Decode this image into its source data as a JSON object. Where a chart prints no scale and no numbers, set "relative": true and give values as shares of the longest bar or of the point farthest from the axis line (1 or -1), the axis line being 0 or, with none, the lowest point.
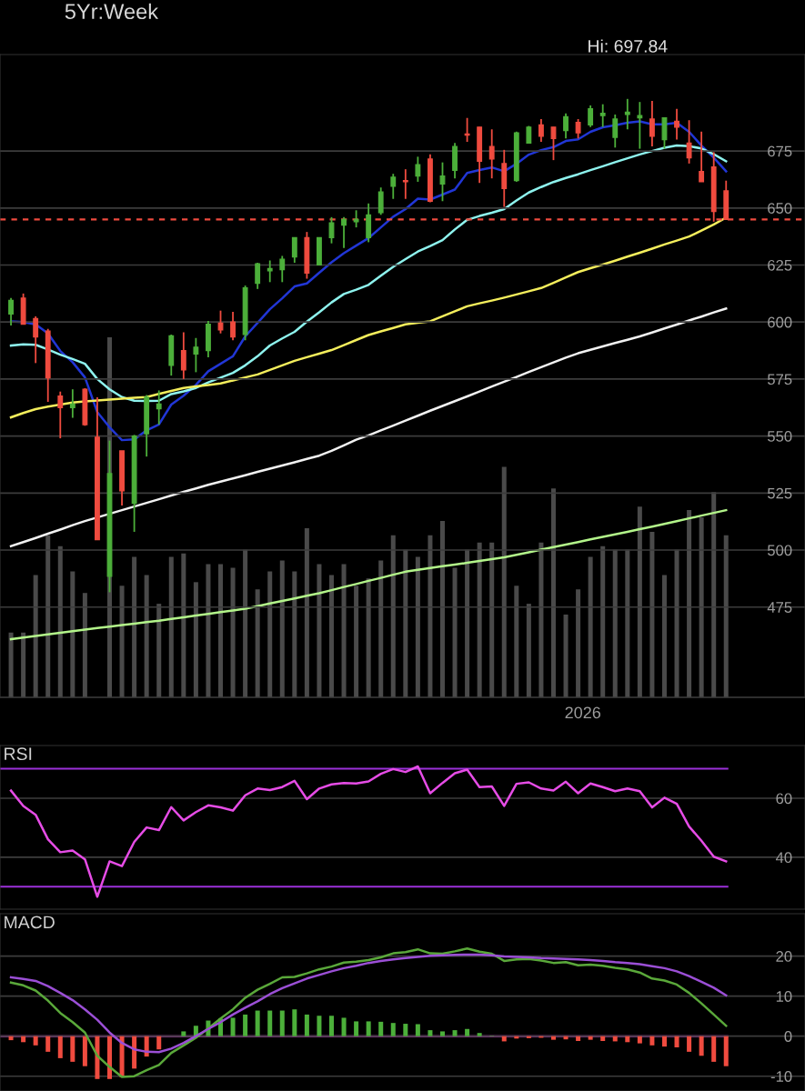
{
  "chart_data": [
    {
      "type": "candlestick",
      "title": "5Yr:Week",
      "categories": [
        null,
        null,
        null,
        null,
        null,
        null,
        null,
        null,
        null,
        null,
        null,
        null,
        null,
        null,
        null,
        null,
        null,
        null,
        null,
        null,
        null,
        null,
        null,
        null,
        null,
        null,
        null,
        null,
        null,
        null,
        null,
        null,
        null,
        null,
        null,
        null,
        null,
        null,
        null,
        null,
        null,
        null,
        null,
        null,
        null,
        null,
        null,
        null,
        null,
        null,
        null,
        null,
        null,
        null,
        null,
        null,
        null,
        null,
        null
      ],
      "ohlc": [
        [
          603.5,
          610.5,
          598.5,
          609.5
        ],
        [
          610.5,
          612.5,
          599,
          599
        ],
        [
          601.5,
          602.5,
          582,
          593.5
        ],
        [
          596,
          597,
          565,
          575.5
        ],
        [
          567.5,
          569.5,
          549,
          562.5
        ],
        [
          562.5,
          570.5,
          558,
          564
        ],
        [
          570.5,
          571,
          554.5,
          555
        ],
        [
          549.5,
          567,
          504.5,
          504.5
        ],
        [
          488.5,
          548,
          481.5,
          533.5
        ],
        [
          543.5,
          543.5,
          519.5,
          526
        ],
        [
          520.5,
          550.5,
          508,
          550
        ],
        [
          551,
          568,
          541,
          567
        ],
        [
          562,
          570,
          555,
          564
        ],
        [
          581,
          594.5,
          576.5,
          594
        ],
        [
          587.5,
          595.5,
          575,
          579
        ],
        [
          586,
          593,
          578,
          589
        ],
        [
          587.5,
          600.5,
          584.5,
          599
        ],
        [
          599.5,
          605,
          595,
          596.5
        ],
        [
          600,
          604.5,
          592,
          593.5
        ],
        [
          594.5,
          616,
          592,
          615
        ],
        [
          617,
          626,
          614.5,
          625.5
        ],
        [
          622.5,
          627,
          617.5,
          623.5
        ],
        [
          623,
          629,
          617.5,
          627.5
        ],
        [
          628.5,
          637,
          626,
          637
        ],
        [
          637,
          639.5,
          619,
          621.5
        ],
        [
          625,
          637,
          625,
          637
        ],
        [
          637,
          646,
          634.5,
          643.5
        ],
        [
          642.5,
          646,
          632.5,
          645
        ],
        [
          644,
          649,
          641.5,
          645
        ],
        [
          637,
          652,
          635,
          647
        ],
        [
          648,
          659,
          647,
          657
        ],
        [
          659.5,
          665,
          654,
          663.5
        ],
        [
          662,
          667,
          654,
          661.5
        ],
        [
          664,
          672.5,
          661.5,
          669
        ],
        [
          671.5,
          673.5,
          652.5,
          653
        ],
        [
          660.5,
          670,
          653,
          664
        ],
        [
          666.5,
          678.5,
          663,
          677
        ],
        [
          682.5,
          689.5,
          679,
          682
        ],
        [
          685.5,
          685.5,
          661,
          670.5
        ],
        [
          677,
          684.5,
          663,
          671.5
        ],
        [
          669.5,
          675.5,
          650.5,
          658.5
        ],
        [
          662,
          683.5,
          661.5,
          683
        ],
        [
          678.5,
          686,
          678.5,
          685.5
        ],
        [
          686.5,
          689,
          679,
          681.5
        ],
        [
          685.5,
          685.5,
          671,
          680.5
        ],
        [
          684,
          691.5,
          680.5,
          690
        ],
        [
          687.5,
          689,
          680.5,
          683
        ],
        [
          686.5,
          695,
          685.5,
          693.5
        ],
        [
          690.5,
          695.5,
          685.5,
          691.5
        ],
        [
          681,
          691,
          676.5,
          689
        ],
        [
          691,
          697.84,
          684.5,
          692
        ],
        [
          689.5,
          696.5,
          676,
          690.5
        ],
        [
          689,
          697,
          677,
          681.5
        ],
        [
          680,
          689.5,
          676,
          689.5
        ],
        [
          688,
          693.5,
          680,
          685.5
        ],
        [
          678.5,
          688.5,
          669.5,
          672
        ],
        [
          666,
          683.5,
          661.5,
          661.5
        ],
        [
          668,
          674.5,
          644,
          648.5
        ],
        [
          657.5,
          662,
          645,
          645
        ]
      ],
      "colors": [
        "#4caf3a",
        "#ef4b3f",
        "#ef4b3f",
        "#ef4b3f",
        "#ef4b3f",
        "#4caf3a",
        "#ef4b3f",
        "#ef4b3f",
        "#4caf3a",
        "#ef4b3f",
        "#4caf3a",
        "#4caf3a",
        "#4caf3a",
        "#4caf3a",
        "#ef4b3f",
        "#4caf3a",
        "#4caf3a",
        "#ef4b3f",
        "#ef4b3f",
        "#4caf3a",
        "#4caf3a",
        "#4caf3a",
        "#4caf3a",
        "#4caf3a",
        "#ef4b3f",
        "#4caf3a",
        "#4caf3a",
        "#4caf3a",
        "#4caf3a",
        "#4caf3a",
        "#4caf3a",
        "#4caf3a",
        "#ef4b3f",
        "#4caf3a",
        "#ef4b3f",
        "#4caf3a",
        "#4caf3a",
        "#ef4b3f",
        "#ef4b3f",
        "#ef4b3f",
        "#ef4b3f",
        "#4caf3a",
        "#4caf3a",
        "#ef4b3f",
        "#ef4b3f",
        "#4caf3a",
        "#ef4b3f",
        "#4caf3a",
        "#4caf3a",
        "#4caf3a",
        "#4caf3a",
        "#4caf3a",
        "#ef4b3f",
        "#4caf3a",
        "#ef4b3f",
        "#ef4b3f",
        "#ef4b3f",
        "#ef4b3f",
        "#ef4b3f"
      ],
      "ylim": [
        435.4,
        717.3
      ],
      "yticks": [
        475,
        500,
        525,
        550,
        575,
        600,
        625,
        650,
        675
      ],
      "tick_labels": "y",
      "grid": "y",
      "ref_lines": [
        {
          "axis": "y",
          "value": 645,
          "color": "#ef4b3f",
          "line_style": "dashed"
        }
      ],
      "annotations": [
        {
          "text": "Hi: 697.84",
          "y": 697.84
        }
      ]
    },
    {
      "type": "line",
      "categories": [
        null,
        null,
        null,
        null,
        null,
        null,
        null,
        null,
        null,
        null,
        null,
        null,
        null,
        null,
        null,
        null,
        null,
        null,
        null,
        null,
        null,
        null,
        null,
        null,
        null,
        null,
        null,
        null,
        null,
        null,
        null,
        null,
        null,
        null,
        null,
        null,
        null,
        null,
        null,
        null,
        null,
        null,
        null,
        null,
        null,
        null,
        null,
        null,
        null,
        null,
        null,
        null,
        null,
        null,
        null,
        null,
        null,
        null,
        null
      ],
      "series": [
        {
          "type": "line",
          "color": "#2136d6",
          "values": [
            600.3,
            600.0,
            599.0,
            595.0,
            587.3,
            582.4,
            575.7,
            560.5,
            553.8,
            548.2,
            548.5,
            552.5,
            555.1,
            563.8,
            567.7,
            572.4,
            578.4,
            581.7,
            585.0,
            593.7,
            599.6,
            605.6,
            610.4,
            615.6,
            616.9,
            621.6,
            626.2,
            630.2,
            633.5,
            636.8,
            641.5,
            646.2,
            649.5,
            654.1,
            653.7,
            655.9,
            658.1,
            665.4,
            666.7,
            667.8,
            666.1,
            669.4,
            673.4,
            675.4,
            676.7,
            679.4,
            680.1,
            683.4,
            685.4,
            686.3,
            687.4,
            688.0,
            686.7,
            686.7,
            687.4,
            683.4,
            677.4,
            672.1,
            666.1
          ]
        },
        {
          "type": "line",
          "color": "#8ef3ee",
          "values": [
            589.7,
            590.2,
            590.0,
            588.0,
            585.7,
            583.8,
            581.7,
            575.0,
            570.5,
            567.1,
            565.5,
            565.4,
            565.5,
            568.4,
            569.6,
            571.1,
            573.5,
            575.6,
            577.7,
            581.0,
            585.0,
            589.7,
            592.8,
            595.7,
            600.2,
            604.3,
            608.6,
            612.3,
            614.2,
            616.3,
            620.3,
            624.2,
            627.6,
            630.9,
            633.3,
            635.9,
            640.6,
            644.8,
            646.5,
            647.9,
            649.5,
            653.3,
            656.8,
            659.2,
            661.4,
            663.2,
            664.8,
            666.6,
            668.3,
            670.1,
            671.8,
            673.5,
            675.0,
            676.4,
            677.4,
            677.1,
            676.1,
            673.6,
            670.5
          ]
        },
        {
          "type": "line",
          "color": "#f4ee5c",
          "values": [
            558.2,
            560.1,
            561.8,
            562.9,
            563.8,
            564.7,
            565.2,
            565.6,
            566.0,
            566.4,
            566.8,
            567.1,
            568.5,
            569.8,
            571.1,
            571.8,
            572.4,
            573.1,
            574.4,
            575.7,
            577.0,
            579.0,
            581.0,
            583.0,
            584.6,
            586.1,
            587.7,
            589.9,
            592.1,
            594.3,
            595.9,
            597.4,
            599.0,
            599.7,
            600.3,
            602.5,
            604.7,
            606.9,
            608.2,
            609.4,
            610.7,
            612.1,
            613.5,
            614.9,
            617.2,
            619.6,
            621.9,
            623.6,
            625.2,
            626.9,
            628.7,
            630.4,
            632.2,
            634.0,
            635.7,
            637.5,
            640.1,
            642.8,
            645.8
          ]
        },
        {
          "type": "line",
          "color": "#f2f2f2",
          "values": [
            501.7,
            503.5,
            505.3,
            507.2,
            509.0,
            510.9,
            512.7,
            514.3,
            515.9,
            517.5,
            519.1,
            520.7,
            522.3,
            523.9,
            525.5,
            527.0,
            528.6,
            530.0,
            531.4,
            532.8,
            534.3,
            535.7,
            537.1,
            538.5,
            540.0,
            541.4,
            543.5,
            545.9,
            548.4,
            550.3,
            552.5,
            554.6,
            556.8,
            558.9,
            561.1,
            563.2,
            565.3,
            567.4,
            569.5,
            571.7,
            573.8,
            575.9,
            578.1,
            580.2,
            582.3,
            584.4,
            586.3,
            587.8,
            589.3,
            590.8,
            592.2,
            593.7,
            595.4,
            597.2,
            598.9,
            600.7,
            602.4,
            604.2,
            605.9
          ]
        },
        {
          "type": "line",
          "color": "#b3f58a",
          "values": [
            460.9,
            461.6,
            462.3,
            463.0,
            463.7,
            464.4,
            465.1,
            465.8,
            466.4,
            467.1,
            467.7,
            468.4,
            469.0,
            469.8,
            470.5,
            471.3,
            472.0,
            472.8,
            473.5,
            474.3,
            475.4,
            476.6,
            477.7,
            478.8,
            480.0,
            481.1,
            482.4,
            483.8,
            485.1,
            486.5,
            487.8,
            489.2,
            490.5,
            491.3,
            492.1,
            492.9,
            493.6,
            494.4,
            495.2,
            496.0,
            496.8,
            497.9,
            499.0,
            500.2,
            501.3,
            502.4,
            503.5,
            504.7,
            505.8,
            506.9,
            508.0,
            509.2,
            510.3,
            511.5,
            512.7,
            513.9,
            515.1,
            516.3,
            517.5
          ]
        }
      ],
      "ylim": [
        435.4,
        717.3
      ],
      "yticks": [
        475,
        500,
        525,
        550,
        575,
        600,
        625,
        650,
        675
      ],
      "tick_labels": false
    },
    {
      "type": "bar",
      "relative": true,
      "color": "#4a4a4a",
      "categories": [
        null,
        null,
        null,
        null,
        null,
        null,
        null,
        null,
        null,
        null,
        null,
        null,
        null,
        null,
        null,
        null,
        null,
        null,
        null,
        null,
        null,
        null,
        null,
        null,
        null,
        null,
        null,
        null,
        null,
        null,
        null,
        null,
        null,
        null,
        null,
        null,
        null,
        null,
        null,
        null,
        null,
        null,
        null,
        null,
        null,
        null,
        null,
        null,
        null,
        null,
        null,
        null,
        null,
        null,
        null,
        null,
        null,
        null,
        null
      ],
      "annotations": [
        "2026"
      ],
      "values": [
        0.18,
        0.18,
        0.34,
        0.45,
        0.42,
        0.35,
        0.29,
        null,
        1,
        0.31,
        0.39,
        0.34,
        0.26,
        0.39,
        0.4,
        0.32,
        0.37,
        0.37,
        0.36,
        0.41,
        0.3,
        0.35,
        0.38,
        0.35,
        0.47,
        0.37,
        0.34,
        0.37,
        0.31,
        0.33,
        0.38,
        0.45,
        0.41,
        0.39,
        0.45,
        0.49,
        0.36,
        0.41,
        0.43,
        0.43,
        0.64,
        0.31,
        0.26,
        0.43,
        0.58,
        0.23,
        0.3,
        0.39,
        0.42,
        0.41,
        0.41,
        0.53,
        0.46,
        0.34,
        0.41,
        0.52,
        0.5,
        0.57,
        0.45
      ],
      "tick_labels": "x"
    },
    {
      "type": "line",
      "title": "RSI",
      "categories": [
        null,
        null,
        null,
        null,
        null,
        null,
        null,
        null,
        null,
        null,
        null,
        null,
        null,
        null,
        null,
        null,
        null,
        null,
        null,
        null,
        null,
        null,
        null,
        null,
        null,
        null,
        null,
        null,
        null,
        null,
        null,
        null,
        null,
        null,
        null,
        null,
        null,
        null,
        null,
        null,
        null,
        null,
        null,
        null,
        null,
        null,
        null,
        null,
        null,
        null,
        null,
        null,
        null,
        null,
        null,
        null,
        null,
        null,
        null
      ],
      "series": [
        {
          "type": "line",
          "color": "#e64ce6",
          "values": [
            62.6,
            57.4,
            54.4,
            46.1,
            41.7,
            42.3,
            39.3,
            26.6,
            38.6,
            37.0,
            45.2,
            50.1,
            49.2,
            57.0,
            52.5,
            55.3,
            57.6,
            56.9,
            55.8,
            61.0,
            63.3,
            62.8,
            63.8,
            65.9,
            59.7,
            63.3,
            64.7,
            65.2,
            65.0,
            65.7,
            68.3,
            69.9,
            68.9,
            70.8,
            61.7,
            65.2,
            68.5,
            69.7,
            63.8,
            64.0,
            57.4,
            64.9,
            65.4,
            63.3,
            62.6,
            65.6,
            61.7,
            65.0,
            63.8,
            62.4,
            63.3,
            62.4,
            56.9,
            60.2,
            58.1,
            50.4,
            45.6,
            40.2,
            38.6
          ]
        }
      ],
      "ylim": [
        22.4,
        77.9
      ],
      "yticks": [
        40,
        60
      ],
      "tick_labels": "y",
      "grid": "y",
      "ref_lines": [
        {
          "axis": "y",
          "value": 70,
          "color": "#9b30d9"
        },
        {
          "axis": "y",
          "value": 30,
          "color": "#9b30d9"
        }
      ]
    },
    {
      "type": "bar",
      "title": "MACD",
      "categories": [
        null,
        null,
        null,
        null,
        null,
        null,
        null,
        null,
        null,
        null,
        null,
        null,
        null,
        null,
        null,
        null,
        null,
        null,
        null,
        null,
        null,
        null,
        null,
        null,
        null,
        null,
        null,
        null,
        null,
        null,
        null,
        null,
        null,
        null,
        null,
        null,
        null,
        null,
        null,
        null,
        null,
        null,
        null,
        null,
        null,
        null,
        null,
        null,
        null,
        null,
        null,
        null,
        null,
        null,
        null,
        null,
        null,
        null,
        null
      ],
      "colors": [
        "#ef4b3f",
        "#ef4b3f",
        "#ef4b3f",
        "#ef4b3f",
        "#ef4b3f",
        "#ef4b3f",
        "#ef4b3f",
        "#ef4b3f",
        "#ef4b3f",
        "#ef4b3f",
        "#ef4b3f",
        "#ef4b3f",
        "#ef4b3f",
        "#4caf3a",
        "#4caf3a",
        "#4caf3a",
        "#4caf3a",
        "#4caf3a",
        "#4caf3a",
        "#4caf3a",
        "#4caf3a",
        "#4caf3a",
        "#4caf3a",
        "#4caf3a",
        "#4caf3a",
        "#4caf3a",
        "#4caf3a",
        "#4caf3a",
        "#4caf3a",
        "#4caf3a",
        "#4caf3a",
        "#4caf3a",
        "#4caf3a",
        "#4caf3a",
        "#4caf3a",
        "#4caf3a",
        "#4caf3a",
        "#4caf3a",
        "#4caf3a",
        "#4caf3a",
        "#ef4b3f",
        "#ef4b3f",
        "#ef4b3f",
        "#ef4b3f",
        "#ef4b3f",
        "#ef4b3f",
        "#ef4b3f",
        "#ef4b3f",
        "#ef4b3f",
        "#ef4b3f",
        "#ef4b3f",
        "#ef4b3f",
        "#ef4b3f",
        "#ef4b3f",
        "#ef4b3f",
        "#ef4b3f",
        "#ef4b3f",
        "#ef4b3f",
        "#ef4b3f"
      ],
      "values": [
        -1.0,
        -1.5,
        -2.3,
        -3.9,
        -5.5,
        -6.4,
        -7.5,
        -10.7,
        -10.7,
        -10.3,
        -8.1,
        -5.1,
        -3.3,
        0,
        1.2,
        2.6,
        3.9,
        4.4,
        4.6,
        5.4,
        6.4,
        6.4,
        6.4,
        6.7,
        5.4,
        5.1,
        5.1,
        4.6,
        3.7,
        3.7,
        3.6,
        3.3,
        3.1,
        3.0,
        1.5,
        1.2,
        1.5,
        1.8,
        0.8,
        0.1,
        -1.3,
        -0.6,
        -0.5,
        -0.4,
        -0.9,
        -0.8,
        -1.2,
        -0.9,
        -1.2,
        -1.3,
        -1.5,
        -1.8,
        -2.3,
        -2.6,
        -2.8,
        -3.9,
        -4.9,
        -6.4,
        -7.5
      ],
      "ylim": [
        -13.7,
        30.6
      ],
      "yticks": [
        -10,
        0,
        10,
        20
      ],
      "tick_labels": "y",
      "grid": "y",
      "ref_lines": [
        {
          "axis": "y",
          "value": 0,
          "color": "#e040e0"
        }
      ]
    },
    {
      "type": "line",
      "categories": [
        null,
        null,
        null,
        null,
        null,
        null,
        null,
        null,
        null,
        null,
        null,
        null,
        null,
        null,
        null,
        null,
        null,
        null,
        null,
        null,
        null,
        null,
        null,
        null,
        null,
        null,
        null,
        null,
        null,
        null,
        null,
        null,
        null,
        null,
        null,
        null,
        null,
        null,
        null,
        null,
        null,
        null,
        null,
        null,
        null,
        null,
        null,
        null,
        null,
        null,
        null,
        null,
        null,
        null,
        null,
        null,
        null,
        null,
        null
      ],
      "series": [
        {
          "type": "line",
          "color": "#5aa83a",
          "values": [
            13.4,
            12.7,
            11.4,
            8.9,
            5.8,
            3.5,
            0.9,
            -4.9,
            -7.7,
            -10.2,
            -10.0,
            -8.5,
            -7.2,
            -4.2,
            -2.3,
            -0.4,
            1.9,
            4.4,
            6.7,
            9.6,
            11.6,
            13.1,
            14.7,
            14.8,
            15.7,
            16.7,
            17.4,
            18.4,
            18.6,
            19.0,
            19.7,
            20.7,
            21.0,
            21.7,
            20.7,
            20.6,
            21.2,
            21.9,
            21.1,
            20.6,
            18.8,
            19.2,
            19.3,
            18.9,
            18.3,
            18.5,
            17.7,
            17.9,
            17.6,
            17.1,
            16.7,
            15.9,
            14.4,
            13.9,
            12.9,
            10.8,
            8.2,
            5.4,
            2.6
          ]
        },
        {
          "type": "line",
          "color": "#9b4fd6",
          "values": [
            14.7,
            14.3,
            13.8,
            12.5,
            10.8,
            9.0,
            6.7,
            4.1,
            0.9,
            -1.7,
            -3.3,
            -3.9,
            -4.0,
            -3.1,
            -1.7,
            0.0,
            1.8,
            3.5,
            5.4,
            7.1,
            8.7,
            10.5,
            12.0,
            13.2,
            14.4,
            15.3,
            16.2,
            17.0,
            17.6,
            18.3,
            18.8,
            19.2,
            19.5,
            19.8,
            20.1,
            20.2,
            20.3,
            20.4,
            20.4,
            20.2,
            19.9,
            19.8,
            19.7,
            19.5,
            19.4,
            19.3,
            19.2,
            19.0,
            18.8,
            18.5,
            18.3,
            18.0,
            17.5,
            17.0,
            16.2,
            15.0,
            13.6,
            12.1,
            10.2
          ]
        }
      ],
      "ylim": [
        -13.7,
        30.6
      ],
      "yticks": [
        -10,
        0,
        10,
        20
      ],
      "tick_labels": false
    }
  ]
}
